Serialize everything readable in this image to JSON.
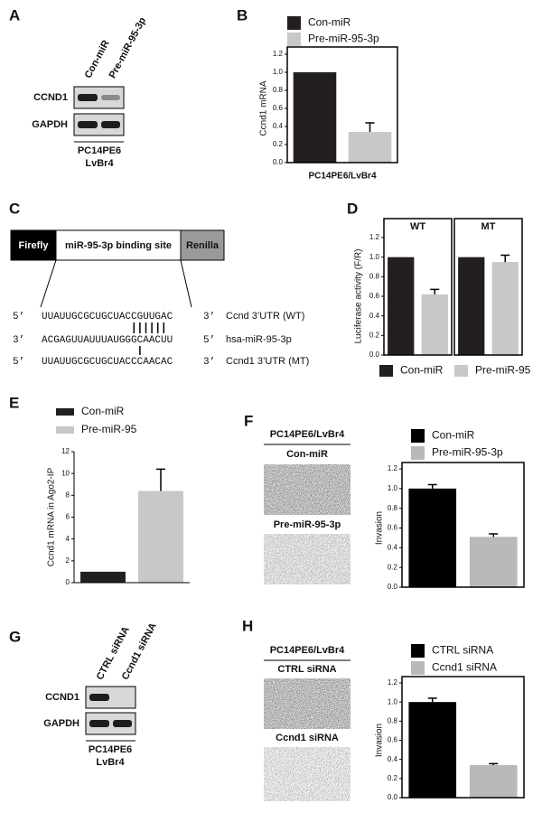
{
  "panel_letters": [
    "A",
    "B",
    "C",
    "D",
    "E",
    "F",
    "G",
    "H"
  ],
  "blots": [
    {
      "lanes": [
        "Con-miR",
        "Pre-miR-95-3p"
      ],
      "rows": [
        "CCND1",
        "GAPDH"
      ],
      "cell_line": [
        "PC14PE6",
        "LvBr4"
      ]
    },
    {
      "lanes": [
        "CTRL siRNA",
        "Ccnd1 siRNA"
      ],
      "rows": [
        "CCND1",
        "GAPDH"
      ],
      "cell_line": [
        "PC14PE6",
        "LvBr4"
      ]
    }
  ],
  "diagram": {
    "boxes": [
      "Firefly",
      "miR-95-3p binding site",
      "Renilla"
    ],
    "sequences": [
      {
        "left": "5’",
        "seq": "UUAUUGCGCUGCUACCGUUGAC",
        "right": "3’",
        "label": "Ccnd 3’UTR (WT)"
      },
      {
        "left": "3’",
        "seq": "ACGAGUUAUUUAUGGGCAACUU",
        "right": "5’",
        "label": "hsa-miR-95-3p"
      },
      {
        "left": "5’",
        "seq": "UUAUUGCGCUGCUACCCAACAC",
        "right": "3’",
        "label": "Ccnd1 3’UTR (MT)"
      }
    ]
  },
  "micrographs": [
    {
      "header": "PC14PE6/LvBr4",
      "labels": [
        "Con-miR",
        "Pre-miR-95-3p"
      ]
    },
    {
      "header": "PC14PE6/LvBr4",
      "labels": [
        "CTRL siRNA",
        "Ccnd1 siRNA"
      ]
    }
  ],
  "chart_data": [
    {
      "type": "bar",
      "ylabel": "Ccnd1 mRNA",
      "xlabel": "PC14PE6/LvBr4",
      "ylim": [
        0,
        1.2
      ],
      "yticks": [
        {
          "value": 0,
          "label": "0.0"
        },
        0.2,
        0.4,
        0.6,
        0.8,
        {
          "value": 1,
          "label": "1.0"
        },
        1.2
      ],
      "series": [
        {
          "name": "Con-miR",
          "color": "#231f20",
          "values": [
            1
          ]
        },
        {
          "name": "Pre-miR-95-3p",
          "color": "#c7c8ca",
          "values": [
            0.34
          ],
          "errors": [
            0.1
          ]
        }
      ]
    },
    {
      "type": "bar",
      "ylabel": "Luciferase activity (F/R)",
      "groups": [
        "WT",
        "MT"
      ],
      "ylim": [
        0,
        1.2
      ],
      "yticks": [
        {
          "value": 0,
          "label": "0.0"
        },
        0.2,
        0.4,
        0.6,
        0.8,
        {
          "value": 1,
          "label": "1.0"
        },
        1.2
      ],
      "series": [
        {
          "name": "Con-miR",
          "color": "#231f20",
          "values": [
            1,
            1
          ]
        },
        {
          "name": "Pre-miR-95",
          "color": "#c7c8ca",
          "values": [
            0.62,
            0.95
          ],
          "errors": [
            0.05,
            0.07
          ]
        }
      ]
    },
    {
      "type": "bar",
      "ylabel": "Ccnd1 mRNA in Ago2-IP",
      "ylim": [
        0,
        12
      ],
      "yticks": [
        0,
        2,
        4,
        6,
        8,
        10,
        12
      ],
      "series": [
        {
          "name": "Con-miR",
          "color": "#231f20",
          "values": [
            1
          ]
        },
        {
          "name": "Pre-miR-95",
          "color": "#c7c8ca",
          "values": [
            8.4
          ],
          "errors": [
            2
          ]
        }
      ]
    },
    {
      "type": "bar",
      "ylabel": "Invasion",
      "ylim": [
        0,
        1.2
      ],
      "yticks": [
        {
          "value": 0,
          "label": "0.0"
        },
        0.2,
        0.4,
        0.6,
        0.8,
        {
          "value": 1,
          "label": "1.0"
        },
        1.2
      ],
      "series": [
        {
          "name": "Con-miR",
          "color": "#000000",
          "values": [
            1
          ],
          "errors": [
            0.04
          ]
        },
        {
          "name": "Pre-miR-95-3p",
          "color": "#b9b9b9",
          "values": [
            0.51
          ],
          "errors": [
            0.03
          ]
        }
      ]
    },
    {
      "type": "bar",
      "ylabel": "Invasion",
      "ylim": [
        0,
        1.2
      ],
      "yticks": [
        {
          "value": 0,
          "label": "0.0"
        },
        0.2,
        0.4,
        0.6,
        0.8,
        {
          "value": 1,
          "label": "1.0"
        },
        1.2
      ],
      "series": [
        {
          "name": "CTRL siRNA",
          "color": "#000000",
          "values": [
            1
          ],
          "errors": [
            0.04
          ]
        },
        {
          "name": "Ccnd1 siRNA",
          "color": "#b9b9b9",
          "values": [
            0.34
          ],
          "errors": [
            0.015
          ]
        }
      ]
    }
  ]
}
